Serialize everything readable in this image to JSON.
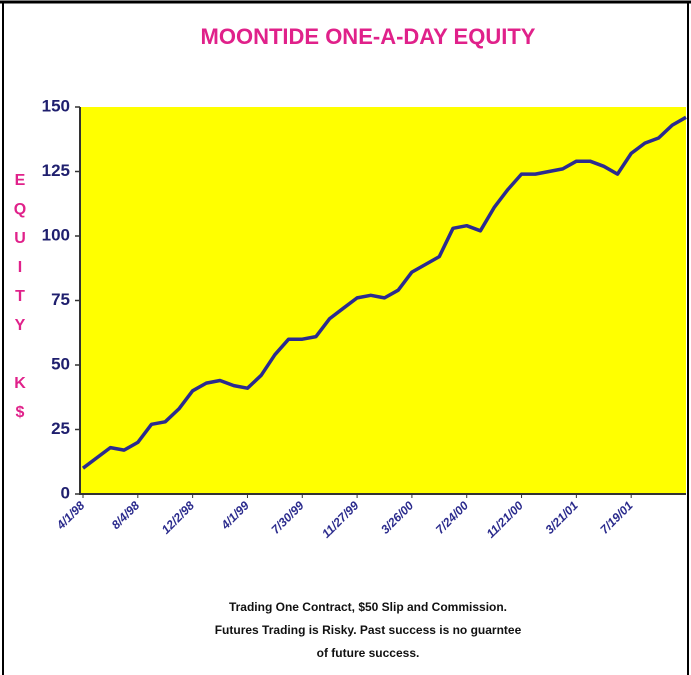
{
  "chart_data": {
    "type": "line",
    "title": "MOONTIDE ONE-A-DAY EQUITY",
    "ylabel": "EQUITY K$",
    "notes": [
      "Trading One Contract, $50 Slip and Commission.",
      "Futures Trading is Risky. Past success is no guarntee",
      "of future success."
    ],
    "categories": [
      "4/1/98",
      null,
      null,
      null,
      "8/4/98",
      null,
      null,
      null,
      "12/2/98",
      null,
      null,
      null,
      "4/1/99",
      null,
      null,
      null,
      "7/30/99",
      null,
      null,
      null,
      "11/27/99",
      null,
      null,
      null,
      "3/26/00",
      null,
      null,
      null,
      "7/24/00",
      null,
      null,
      null,
      "11/21/00",
      null,
      null,
      null,
      "3/21/01",
      null,
      null,
      null,
      "7/19/01",
      null,
      null,
      null,
      null
    ],
    "series": [
      {
        "name": "Equity",
        "color": "#2b2b8f",
        "values": [
          10,
          14,
          18,
          17,
          20,
          27,
          28,
          33,
          40,
          43,
          44,
          42,
          41,
          46,
          54,
          60,
          60,
          61,
          68,
          72,
          76,
          77,
          76,
          79,
          86,
          89,
          92,
          103,
          104,
          102,
          111,
          118,
          124,
          124,
          125,
          126,
          129,
          129,
          127,
          124,
          132,
          136,
          138,
          143,
          146
        ]
      }
    ],
    "ylim": [
      0,
      150
    ],
    "yticks": [
      0,
      25,
      50,
      75,
      100,
      125,
      150
    ],
    "plot_color": "#ffff00",
    "title_color": "#e0218a"
  }
}
